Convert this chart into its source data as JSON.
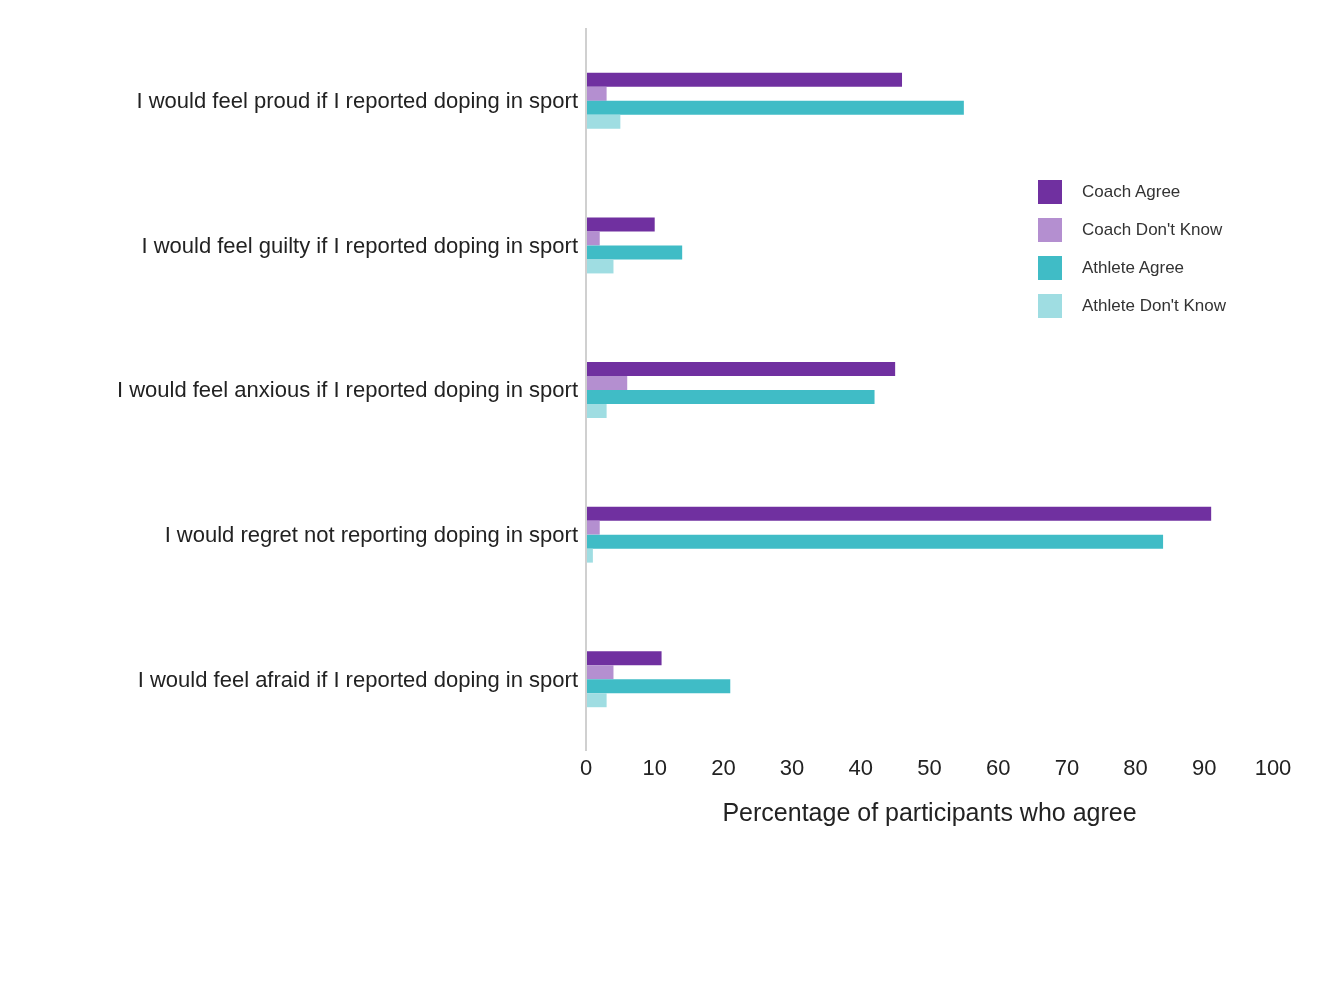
{
  "chart_data": {
    "type": "bar",
    "orientation": "horizontal",
    "xlabel": "Percentage of participants who agree",
    "categories": [
      "I would feel proud if I reported doping in sport",
      "I would feel guilty if I reported doping in sport",
      "I would feel anxious if I reported doping in sport",
      "I would regret not reporting doping in sport",
      "I would feel afraid if I reported doping in sport"
    ],
    "series": [
      {
        "name": "Coach Agree",
        "color": "#7030a0",
        "values": [
          46,
          10,
          45,
          91,
          11
        ]
      },
      {
        "name": "Coach Don't Know",
        "color": "#b48fd0",
        "values": [
          3,
          2,
          6,
          2,
          4
        ]
      },
      {
        "name": "Athlete Agree",
        "color": "#40bcc6",
        "values": [
          55,
          14,
          42,
          84,
          21
        ]
      },
      {
        "name": "Athlete Don't Know",
        "color": "#9fdde2",
        "values": [
          5,
          4,
          3,
          1,
          3
        ]
      }
    ],
    "xlim": [
      0,
      100
    ],
    "xticks": [
      0,
      10,
      20,
      30,
      40,
      50,
      60,
      70,
      80,
      90,
      100
    ],
    "grid": false,
    "legend": "top right"
  }
}
